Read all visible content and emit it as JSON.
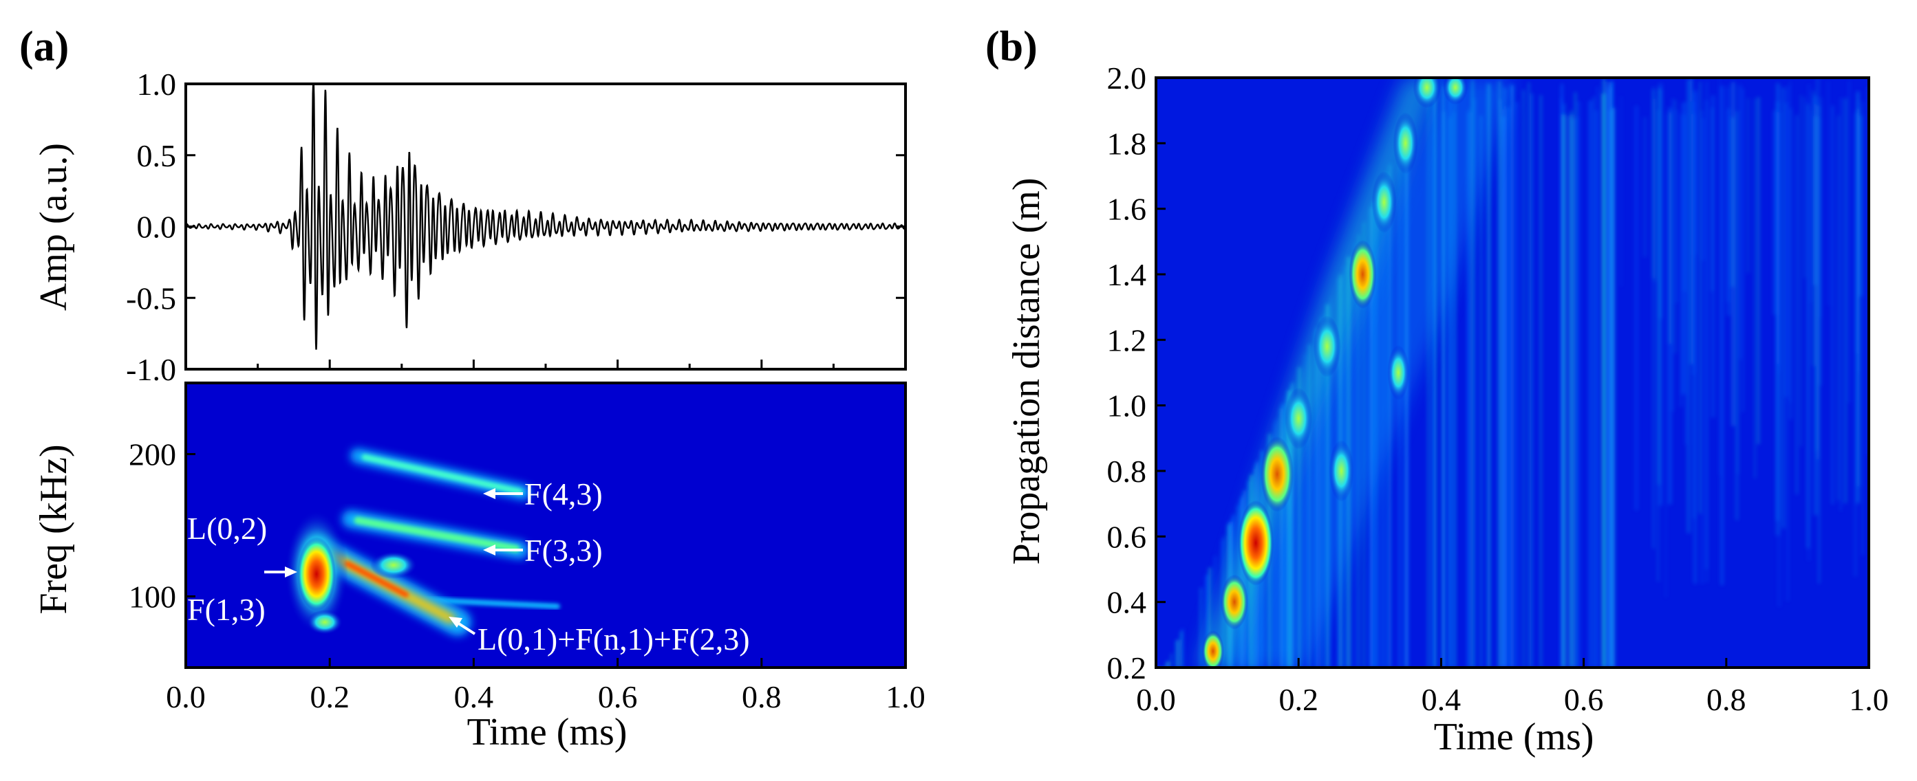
{
  "panels": {
    "a_label": "(a)",
    "b_label": "(b)"
  },
  "chart_data": [
    {
      "id": "a-top",
      "type": "line",
      "xlabel": "",
      "ylabel": "Amp (a.u.)",
      "xlim": [
        0.0,
        1.0
      ],
      "ylim": [
        -1.0,
        1.0
      ],
      "y_ticks": [
        "1.0",
        "0.5",
        "0.0",
        "-0.5",
        "-1.0"
      ],
      "series": [
        {
          "name": "waveform envelope",
          "x": [
            0.0,
            0.1,
            0.145,
            0.16,
            0.175,
            0.19,
            0.21,
            0.24,
            0.27,
            0.29,
            0.31,
            0.33,
            0.36,
            0.4,
            0.45,
            0.5,
            0.55,
            0.6,
            0.7,
            0.8,
            0.9,
            1.0
          ],
          "y": [
            0.015,
            0.02,
            0.05,
            0.5,
            0.98,
            0.88,
            0.6,
            0.35,
            0.35,
            0.47,
            0.73,
            0.4,
            0.25,
            0.16,
            0.12,
            0.09,
            0.06,
            0.05,
            0.04,
            0.03,
            0.025,
            0.02
          ]
        }
      ],
      "color": "#000000"
    },
    {
      "id": "a-bottom",
      "type": "heatmap",
      "xlabel": "Time (ms)",
      "ylabel": "Freq (kHz)",
      "xlim": [
        0.0,
        1.0
      ],
      "ylim": [
        50,
        250
      ],
      "x_ticks": [
        "0.0",
        "0.2",
        "0.4",
        "0.6",
        "0.8",
        "1.0"
      ],
      "y_ticks": [
        "200",
        "100"
      ],
      "annotations": [
        {
          "text": "F(4,3)",
          "x": 0.44,
          "y": 175
        },
        {
          "text": "F(3,3)",
          "x": 0.44,
          "y": 134
        },
        {
          "text": "L(0,2)",
          "x": 0.11,
          "y": 140
        },
        {
          "text": "F(1,3)",
          "x": 0.11,
          "y": 92
        },
        {
          "text": "L(0,1)+F(n,1)+F(2,3)",
          "x": 0.39,
          "y": 82
        }
      ],
      "features": [
        {
          "name": "F(4,3) ridge",
          "t": [
            0.24,
            0.44
          ],
          "f": [
            200,
            175
          ]
        },
        {
          "name": "F(3,3) ridge",
          "t": [
            0.24,
            0.44
          ],
          "f": [
            157,
            134
          ]
        },
        {
          "name": "L(0,2)/F(1,3) peak",
          "t": 0.18,
          "f": 118
        },
        {
          "name": "L(0,1)+F(n,1)+F(2,3) ridge",
          "t": [
            0.2,
            0.39
          ],
          "f": [
            130,
            82
          ]
        }
      ],
      "colormap": [
        "#0000d0",
        "#00aaff",
        "#22ffcc",
        "#ffff00",
        "#ff8800",
        "#cc0000"
      ]
    },
    {
      "id": "b",
      "type": "heatmap",
      "xlabel": "Time (ms)",
      "ylabel": "Propagation distance (m)",
      "xlim": [
        0.0,
        1.0
      ],
      "ylim": [
        0.2,
        2.0
      ],
      "x_ticks": [
        "0.0",
        "0.2",
        "0.4",
        "0.6",
        "0.8",
        "1.0"
      ],
      "y_ticks": [
        "2.0",
        "1.8",
        "1.6",
        "1.4",
        "1.2",
        "1.0",
        "0.8",
        "0.6",
        "0.4",
        "0.2"
      ],
      "features": [
        {
          "name": "wavefront",
          "t": [
            0.05,
            0.4
          ],
          "d": [
            0.2,
            2.0
          ]
        },
        {
          "name": "hotspot",
          "t": 0.14,
          "d": 0.58
        },
        {
          "name": "hotspot",
          "t": 0.17,
          "d": 0.79
        },
        {
          "name": "hotspot",
          "t": 0.29,
          "d": 1.4
        }
      ],
      "colormap": [
        "#0000d0",
        "#00aaff",
        "#22ffcc",
        "#ffff00",
        "#ff8800",
        "#cc0000"
      ]
    }
  ]
}
